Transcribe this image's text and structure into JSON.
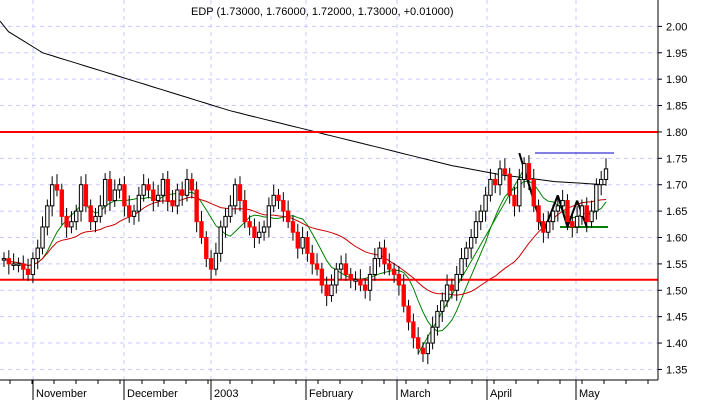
{
  "chart_data": {
    "type": "candlestick",
    "title": "EDP (1.73000, 1.76000, 1.72000, 1.73000, +0.01000)",
    "x_axis": {
      "labels": [
        "November",
        "December",
        "2003",
        "February",
        "March",
        "April",
        "May"
      ]
    },
    "y_axis": {
      "range": [
        1.33,
        2.05
      ],
      "ticks": [
        "2.00",
        "1.95",
        "1.90",
        "1.85",
        "1.80",
        "1.75",
        "1.70",
        "1.65",
        "1.60",
        "1.55",
        "1.50",
        "1.45",
        "1.40",
        "1.35"
      ],
      "tick_values": [
        2.0,
        1.95,
        1.9,
        1.85,
        1.8,
        1.75,
        1.7,
        1.65,
        1.6,
        1.55,
        1.5,
        1.45,
        1.4,
        1.35
      ],
      "position": "right"
    },
    "grid": true,
    "candles": {
      "colors": {
        "down": "#ff0000",
        "up": "#ffffff",
        "outline": "#000000"
      },
      "close": [
        1.56,
        1.55,
        1.55,
        1.55,
        1.54,
        1.53,
        1.56,
        1.58,
        1.62,
        1.66,
        1.7,
        1.69,
        1.64,
        1.62,
        1.63,
        1.65,
        1.7,
        1.66,
        1.63,
        1.64,
        1.66,
        1.71,
        1.67,
        1.69,
        1.7,
        1.66,
        1.64,
        1.65,
        1.68,
        1.7,
        1.69,
        1.67,
        1.68,
        1.71,
        1.67,
        1.66,
        1.69,
        1.68,
        1.71,
        1.69,
        1.63,
        1.6,
        1.56,
        1.54,
        1.57,
        1.62,
        1.64,
        1.66,
        1.7,
        1.67,
        1.63,
        1.62,
        1.6,
        1.61,
        1.62,
        1.66,
        1.68,
        1.67,
        1.65,
        1.63,
        1.61,
        1.58,
        1.6,
        1.57,
        1.55,
        1.54,
        1.51,
        1.49,
        1.51,
        1.54,
        1.55,
        1.53,
        1.52,
        1.52,
        1.51,
        1.5,
        1.53,
        1.56,
        1.58,
        1.55,
        1.54,
        1.53,
        1.51,
        1.47,
        1.44,
        1.41,
        1.39,
        1.38,
        1.4,
        1.43,
        1.46,
        1.48,
        1.51,
        1.5,
        1.53,
        1.56,
        1.58,
        1.6,
        1.63,
        1.65,
        1.68,
        1.71,
        1.7,
        1.73,
        1.72,
        1.68,
        1.66,
        1.71,
        1.74,
        1.71,
        1.66,
        1.63,
        1.61,
        1.63,
        1.65,
        1.66,
        1.67,
        1.63,
        1.62,
        1.64,
        1.66,
        1.63,
        1.65,
        1.7,
        1.71,
        1.73
      ],
      "ma_long": [
        2.01,
        1.99,
        1.98,
        1.97,
        1.96,
        1.95,
        1.945,
        1.94,
        1.935,
        1.93,
        1.925,
        1.92,
        1.915,
        1.91,
        1.905,
        1.9,
        1.895,
        1.89,
        1.885,
        1.88,
        1.875,
        1.87,
        1.865,
        1.86,
        1.855,
        1.85,
        1.845,
        1.84,
        1.836,
        1.832,
        1.828,
        1.824,
        1.82,
        1.816,
        1.812,
        1.808,
        1.804,
        1.8,
        1.796,
        1.792,
        1.788,
        1.784,
        1.78,
        1.776,
        1.772,
        1.768,
        1.764,
        1.76,
        1.756,
        1.752,
        1.748,
        1.744,
        1.74,
        1.736,
        1.733,
        1.73,
        1.727,
        1.724,
        1.721,
        1.718,
        1.716,
        1.714,
        1.712,
        1.71,
        1.708,
        1.706,
        1.705,
        1.704,
        1.703,
        1.702,
        1.701,
        1.7
      ]
    },
    "horizontal_lines": [
      {
        "value": 1.8,
        "color": "#ff0000"
      },
      {
        "value": 1.52,
        "color": "#ff0000"
      },
      {
        "value": 1.76,
        "color": "#0000cc"
      },
      {
        "value": 1.62,
        "color": "#008000"
      }
    ]
  }
}
